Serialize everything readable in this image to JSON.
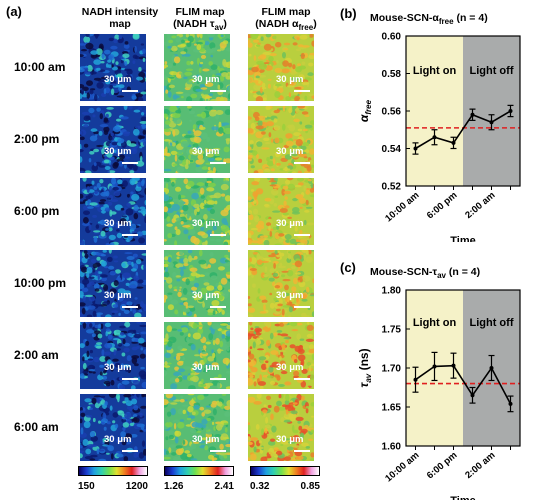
{
  "panel_a": {
    "letter": "(a)",
    "column_headers": [
      {
        "line1": "NADH intensity",
        "line2": "map",
        "line2_sub": ""
      },
      {
        "line1": "FLIM map",
        "line2": "(NADH τ",
        "line2_sub": "av",
        "line2_end": ")"
      },
      {
        "line1": "FLIM map",
        "line2": "(NADH α",
        "line2_sub": "free",
        "line2_end": ")"
      }
    ],
    "row_labels": [
      "10:00 am",
      "2:00 pm",
      "6:00 pm",
      "10:00 pm",
      "2:00 am",
      "6:00 am"
    ],
    "scale_label": "30 μm",
    "colorbars": [
      {
        "min": "150",
        "max": "1200"
      },
      {
        "min": "1.26",
        "max": "2.41"
      },
      {
        "min": "0.32",
        "max": "0.85"
      }
    ]
  },
  "panel_b": {
    "letter": "(b)",
    "title": "Mouse-SCN-α",
    "title_sub": "free",
    "title_n": " (n = 4)",
    "ylabel": "α",
    "ylabel_sub": "free",
    "xlabel": "Time",
    "region_labels": [
      "Light on",
      "Light off"
    ]
  },
  "panel_c": {
    "letter": "(c)",
    "title": "Mouse-SCN-τ",
    "title_sub": "av",
    "title_n": " (n = 4)",
    "ylabel": "τ",
    "ylabel_sub": "av",
    "ylabel_unit": " (ns)",
    "xlabel": "Time",
    "region_labels": [
      "Light on",
      "Light off"
    ]
  },
  "chart_data": [
    {
      "type": "line",
      "title": "Mouse-SCN-αfree (n = 4)",
      "xlabel": "Time",
      "ylabel": "αfree",
      "categories": [
        "10:00 am",
        "2:00 pm",
        "6:00 pm",
        "10:00 pm",
        "2:00 am",
        "6:00 am"
      ],
      "x_tick_labels": [
        "10:00 am",
        "6:00 pm",
        "2:00 am"
      ],
      "x_tick_indices": [
        0,
        2,
        4
      ],
      "values": [
        0.54,
        0.546,
        0.543,
        0.558,
        0.554,
        0.56
      ],
      "errors": [
        0.003,
        0.004,
        0.003,
        0.003,
        0.004,
        0.003
      ],
      "ylim": [
        0.52,
        0.6
      ],
      "yticks": [
        "0.52",
        "0.54",
        "0.56",
        "0.58",
        "0.60"
      ],
      "reference_line": 0.551,
      "reference_color": "#e02020",
      "regions": [
        {
          "label": "Light on",
          "from": 0,
          "to": 3,
          "color": "#f5f2c8"
        },
        {
          "label": "Light off",
          "from": 3,
          "to": 6,
          "color": "#a9abab"
        }
      ]
    },
    {
      "type": "line",
      "title": "Mouse-SCN-τav (n = 4)",
      "xlabel": "Time",
      "ylabel": "τav (ns)",
      "categories": [
        "10:00 am",
        "2:00 pm",
        "6:00 pm",
        "10:00 pm",
        "2:00 am",
        "6:00 am"
      ],
      "x_tick_labels": [
        "10:00 am",
        "6:00 pm",
        "2:00 am"
      ],
      "x_tick_indices": [
        0,
        2,
        4
      ],
      "values": [
        1.685,
        1.702,
        1.703,
        1.665,
        1.7,
        1.654
      ],
      "errors": [
        0.016,
        0.018,
        0.016,
        0.01,
        0.016,
        0.01
      ],
      "ylim": [
        1.6,
        1.8
      ],
      "yticks": [
        "1.60",
        "1.65",
        "1.70",
        "1.75",
        "1.80"
      ],
      "reference_line": 1.68,
      "reference_color": "#e02020",
      "regions": [
        {
          "label": "Light on",
          "from": 0,
          "to": 3,
          "color": "#f5f2c8"
        },
        {
          "label": "Light off",
          "from": 3,
          "to": 6,
          "color": "#a9abab"
        }
      ]
    }
  ],
  "colors": {
    "light_on": "#f5f2c8",
    "light_off": "#a9abab",
    "reference": "#e02020",
    "line": "#000000"
  }
}
